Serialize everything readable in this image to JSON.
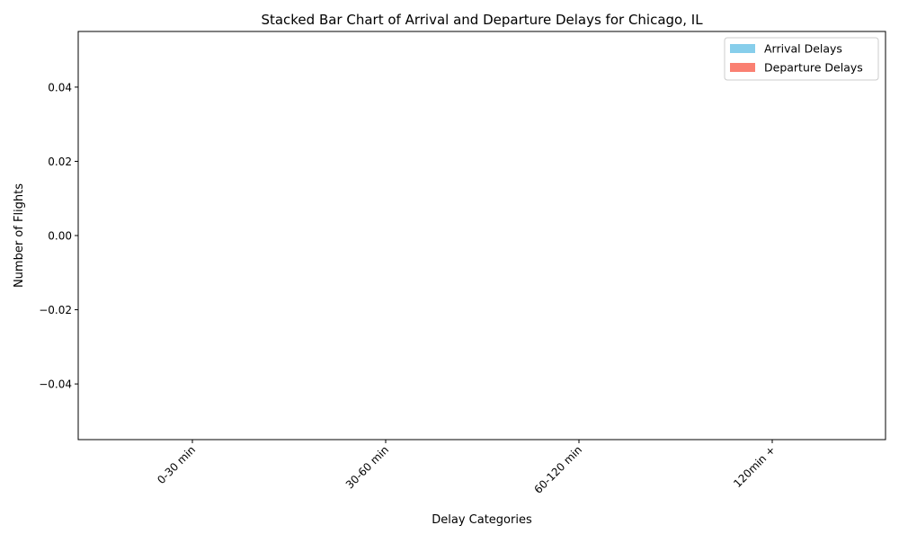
{
  "chart_data": {
    "type": "bar",
    "stacked": true,
    "title": "Stacked Bar Chart of Arrival and Departure Delays for Chicago, IL",
    "xlabel": "Delay Categories",
    "ylabel": "Number of Flights",
    "categories": [
      "0-30 min",
      "30-60 min",
      "60-120 min",
      "120min +"
    ],
    "series": [
      {
        "name": "Arrival Delays",
        "color": "#87ceeb",
        "values": [
          0,
          0,
          0,
          0
        ]
      },
      {
        "name": "Departure Delays",
        "color": "#fa8072",
        "values": [
          0,
          0,
          0,
          0
        ]
      }
    ],
    "ylim": [
      -0.055,
      0.055
    ],
    "yticks": [
      -0.04,
      -0.02,
      0.0,
      0.02,
      0.04
    ],
    "ytick_labels": [
      "−0.04",
      "−0.02",
      "0.00",
      "0.02",
      "0.04"
    ],
    "legend": "top-right",
    "grid": false
  }
}
